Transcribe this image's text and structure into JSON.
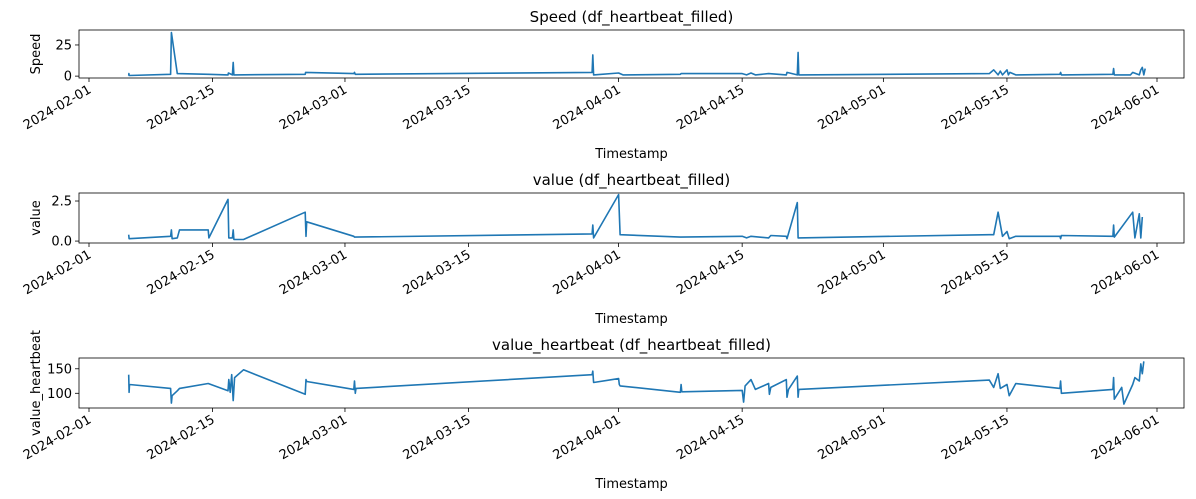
{
  "chart_data": [
    {
      "type": "line",
      "title": "Speed (df_heartbeat_filled)",
      "xlabel": "Timestamp",
      "ylabel": "Speed",
      "color": "#1f77b4",
      "x_range": [
        "2024-01-31",
        "2024-06-03"
      ],
      "ylim": [
        -1.5,
        37
      ],
      "yticks": [
        0,
        25
      ],
      "ytick_labels": [
        "0",
        "25"
      ],
      "xticks": [
        "2024-02-01",
        "2024-02-15",
        "2024-03-01",
        "2024-03-15",
        "2024-04-01",
        "2024-04-15",
        "2024-05-01",
        "2024-05-15",
        "2024-06-01"
      ],
      "xtick_labels": [
        "2024-02-01",
        "2024-02-15",
        "2024-03-01",
        "2024-03-15",
        "2024-04-01",
        "2024-04-15",
        "2024-05-01",
        "2024-05-15",
        "2024-06-01"
      ],
      "points": [
        [
          "2024-02-05T12:00",
          0.5
        ],
        [
          "2024-02-05T12:30",
          2
        ],
        [
          "2024-02-05T13:00",
          0.5
        ],
        [
          "2024-02-10T06:00",
          1.5
        ],
        [
          "2024-02-10T08:00",
          35
        ],
        [
          "2024-02-11T00:00",
          2
        ],
        [
          "2024-02-14T12:00",
          1.5
        ],
        [
          "2024-02-16T18:00",
          1
        ],
        [
          "2024-02-16T19:00",
          2.5
        ],
        [
          "2024-02-17T06:00",
          1
        ],
        [
          "2024-02-17T08:00",
          11
        ],
        [
          "2024-02-17T10:00",
          1
        ],
        [
          "2024-02-25T12:00",
          1.5
        ],
        [
          "2024-02-25T13:00",
          3
        ],
        [
          "2024-03-02T00:00",
          2
        ],
        [
          "2024-03-02T02:00",
          3
        ],
        [
          "2024-03-02T04:00",
          1.5
        ],
        [
          "2024-03-29T00:00",
          3
        ],
        [
          "2024-03-29T02:00",
          17
        ],
        [
          "2024-03-29T04:00",
          1
        ],
        [
          "2024-04-01T00:00",
          2.5
        ],
        [
          "2024-04-01T12:00",
          1
        ],
        [
          "2024-04-08T00:00",
          1.5
        ],
        [
          "2024-04-08T02:00",
          2
        ],
        [
          "2024-04-15T00:00",
          2
        ],
        [
          "2024-04-15T12:00",
          1
        ],
        [
          "2024-04-16T00:00",
          2.5
        ],
        [
          "2024-04-16T12:00",
          1
        ],
        [
          "2024-04-18T00:00",
          2
        ],
        [
          "2024-04-20T00:00",
          1
        ],
        [
          "2024-04-20T02:00",
          3
        ],
        [
          "2024-04-21T06:00",
          1
        ],
        [
          "2024-04-21T08:00",
          19
        ],
        [
          "2024-04-21T10:00",
          1
        ],
        [
          "2024-05-13T00:00",
          2
        ],
        [
          "2024-05-13T12:00",
          5
        ],
        [
          "2024-05-14T00:00",
          1
        ],
        [
          "2024-05-14T06:00",
          4
        ],
        [
          "2024-05-14T12:00",
          1
        ],
        [
          "2024-05-15T00:00",
          5
        ],
        [
          "2024-05-15T04:00",
          1
        ],
        [
          "2024-05-15T08:00",
          3
        ],
        [
          "2024-05-16T00:00",
          1
        ],
        [
          "2024-05-21T00:00",
          1.5
        ],
        [
          "2024-05-21T02:00",
          3
        ],
        [
          "2024-05-21T04:00",
          1
        ],
        [
          "2024-05-27T00:00",
          1.5
        ],
        [
          "2024-05-27T02:00",
          6
        ],
        [
          "2024-05-27T04:00",
          1
        ],
        [
          "2024-05-29T00:00",
          1
        ],
        [
          "2024-05-29T06:00",
          3
        ],
        [
          "2024-05-30T00:00",
          1
        ],
        [
          "2024-05-30T04:00",
          5
        ],
        [
          "2024-05-30T08:00",
          7
        ],
        [
          "2024-05-30T12:00",
          1
        ],
        [
          "2024-05-30T16:00",
          6
        ]
      ]
    },
    {
      "type": "line",
      "title": "value (df_heartbeat_filled)",
      "xlabel": "Timestamp",
      "ylabel": "value",
      "color": "#1f77b4",
      "x_range": [
        "2024-01-31",
        "2024-06-03"
      ],
      "ylim": [
        -0.12,
        3.0
      ],
      "yticks": [
        0.0,
        2.5
      ],
      "ytick_labels": [
        "0.0",
        "2.5"
      ],
      "xticks": [
        "2024-02-01",
        "2024-02-15",
        "2024-03-01",
        "2024-03-15",
        "2024-04-01",
        "2024-04-15",
        "2024-05-01",
        "2024-05-15",
        "2024-06-01"
      ],
      "xtick_labels": [
        "2024-02-01",
        "2024-02-15",
        "2024-03-01",
        "2024-03-15",
        "2024-04-01",
        "2024-04-15",
        "2024-05-01",
        "2024-05-15",
        "2024-06-01"
      ],
      "points": [
        [
          "2024-02-05T12:00",
          0.4
        ],
        [
          "2024-02-05T13:00",
          0.15
        ],
        [
          "2024-02-10T06:00",
          0.3
        ],
        [
          "2024-02-10T08:00",
          0.7
        ],
        [
          "2024-02-10T10:00",
          0.15
        ],
        [
          "2024-02-11T00:00",
          0.2
        ],
        [
          "2024-02-11T06:00",
          0.7
        ],
        [
          "2024-02-14T12:00",
          0.7
        ],
        [
          "2024-02-14T14:00",
          0.2
        ],
        [
          "2024-02-16T18:00",
          2.6
        ],
        [
          "2024-02-16T20:00",
          0.2
        ],
        [
          "2024-02-17T06:00",
          0.2
        ],
        [
          "2024-02-17T08:00",
          0.7
        ],
        [
          "2024-02-17T10:00",
          0.1
        ],
        [
          "2024-02-18T12:00",
          0.1
        ],
        [
          "2024-02-25T12:00",
          1.8
        ],
        [
          "2024-02-25T14:00",
          0.3
        ],
        [
          "2024-02-25T16:00",
          1.2
        ],
        [
          "2024-03-02T00:00",
          0.3
        ],
        [
          "2024-03-02T02:00",
          0.25
        ],
        [
          "2024-03-29T00:00",
          0.45
        ],
        [
          "2024-03-29T02:00",
          1.0
        ],
        [
          "2024-03-29T04:00",
          0.2
        ],
        [
          "2024-04-01T00:00",
          2.9
        ],
        [
          "2024-04-01T04:00",
          0.4
        ],
        [
          "2024-04-08T00:00",
          0.25
        ],
        [
          "2024-04-15T00:00",
          0.3
        ],
        [
          "2024-04-15T12:00",
          0.2
        ],
        [
          "2024-04-16T00:00",
          0.3
        ],
        [
          "2024-04-18T00:00",
          0.2
        ],
        [
          "2024-04-18T06:00",
          0.35
        ],
        [
          "2024-04-20T00:00",
          0.3
        ],
        [
          "2024-04-20T02:00",
          0.15
        ],
        [
          "2024-04-21T06:00",
          2.4
        ],
        [
          "2024-04-21T08:00",
          0.2
        ],
        [
          "2024-05-13T00:00",
          0.4
        ],
        [
          "2024-05-13T12:00",
          0.4
        ],
        [
          "2024-05-14T00:00",
          1.8
        ],
        [
          "2024-05-14T12:00",
          0.3
        ],
        [
          "2024-05-15T00:00",
          0.6
        ],
        [
          "2024-05-15T06:00",
          0.15
        ],
        [
          "2024-05-16T00:00",
          0.3
        ],
        [
          "2024-05-21T00:00",
          0.3
        ],
        [
          "2024-05-21T02:00",
          0.15
        ],
        [
          "2024-05-21T04:00",
          0.35
        ],
        [
          "2024-05-27T00:00",
          0.3
        ],
        [
          "2024-05-27T02:00",
          1.0
        ],
        [
          "2024-05-27T04:00",
          0.25
        ],
        [
          "2024-05-29T06:00",
          1.8
        ],
        [
          "2024-05-29T12:00",
          0.2
        ],
        [
          "2024-05-30T00:00",
          1.7
        ],
        [
          "2024-05-30T04:00",
          0.2
        ],
        [
          "2024-05-30T08:00",
          1.5
        ]
      ]
    },
    {
      "type": "line",
      "title": "value_heartbeat (df_heartbeat_filled)",
      "xlabel": "Timestamp",
      "ylabel": "value_heartbeat",
      "color": "#1f77b4",
      "x_range": [
        "2024-01-31",
        "2024-06-03"
      ],
      "ylim": [
        70,
        172
      ],
      "yticks": [
        100,
        150
      ],
      "ytick_labels": [
        "100",
        "150"
      ],
      "xticks": [
        "2024-02-01",
        "2024-02-15",
        "2024-03-01",
        "2024-03-15",
        "2024-04-01",
        "2024-04-15",
        "2024-05-01",
        "2024-05-15",
        "2024-06-01"
      ],
      "xtick_labels": [
        "2024-02-01",
        "2024-02-15",
        "2024-03-01",
        "2024-03-15",
        "2024-04-01",
        "2024-04-15",
        "2024-05-01",
        "2024-05-15",
        "2024-06-01"
      ],
      "points": [
        [
          "2024-02-05T12:00",
          138
        ],
        [
          "2024-02-05T13:00",
          102
        ],
        [
          "2024-02-05T14:00",
          118
        ],
        [
          "2024-02-10T06:00",
          110
        ],
        [
          "2024-02-10T08:00",
          80
        ],
        [
          "2024-02-10T10:00",
          95
        ],
        [
          "2024-02-11T00:00",
          105
        ],
        [
          "2024-02-11T06:00",
          110
        ],
        [
          "2024-02-14T12:00",
          120
        ],
        [
          "2024-02-16T18:00",
          105
        ],
        [
          "2024-02-16T20:00",
          128
        ],
        [
          "2024-02-17T00:00",
          102
        ],
        [
          "2024-02-17T04:00",
          138
        ],
        [
          "2024-02-17T08:00",
          85
        ],
        [
          "2024-02-17T12:00",
          132
        ],
        [
          "2024-02-18T12:00",
          148
        ],
        [
          "2024-02-25T12:00",
          98
        ],
        [
          "2024-02-25T14:00",
          128
        ],
        [
          "2024-02-25T16:00",
          124
        ],
        [
          "2024-03-02T00:00",
          108
        ],
        [
          "2024-03-02T02:00",
          125
        ],
        [
          "2024-03-02T04:00",
          100
        ],
        [
          "2024-03-02T06:00",
          110
        ],
        [
          "2024-03-29T00:00",
          138
        ],
        [
          "2024-03-29T02:00",
          145
        ],
        [
          "2024-03-29T04:00",
          122
        ],
        [
          "2024-04-01T00:00",
          130
        ],
        [
          "2024-04-01T02:00",
          118
        ],
        [
          "2024-04-01T04:00",
          115
        ],
        [
          "2024-04-08T00:00",
          102
        ],
        [
          "2024-04-08T02:00",
          118
        ],
        [
          "2024-04-08T04:00",
          103
        ],
        [
          "2024-04-15T00:00",
          106
        ],
        [
          "2024-04-15T04:00",
          82
        ],
        [
          "2024-04-15T08:00",
          115
        ],
        [
          "2024-04-16T00:00",
          128
        ],
        [
          "2024-04-16T12:00",
          108
        ],
        [
          "2024-04-18T00:00",
          120
        ],
        [
          "2024-04-18T02:00",
          98
        ],
        [
          "2024-04-18T06:00",
          112
        ],
        [
          "2024-04-20T00:00",
          128
        ],
        [
          "2024-04-20T02:00",
          92
        ],
        [
          "2024-04-20T06:00",
          108
        ],
        [
          "2024-04-21T06:00",
          135
        ],
        [
          "2024-04-21T08:00",
          92
        ],
        [
          "2024-04-21T10:00",
          108
        ],
        [
          "2024-05-13T00:00",
          127
        ],
        [
          "2024-05-13T12:00",
          112
        ],
        [
          "2024-05-14T00:00",
          140
        ],
        [
          "2024-05-14T06:00",
          110
        ],
        [
          "2024-05-15T00:00",
          118
        ],
        [
          "2024-05-15T06:00",
          95
        ],
        [
          "2024-05-16T00:00",
          120
        ],
        [
          "2024-05-21T00:00",
          110
        ],
        [
          "2024-05-21T02:00",
          125
        ],
        [
          "2024-05-21T04:00",
          100
        ],
        [
          "2024-05-27T00:00",
          108
        ],
        [
          "2024-05-27T02:00",
          132
        ],
        [
          "2024-05-27T04:00",
          88
        ],
        [
          "2024-05-28T00:00",
          112
        ],
        [
          "2024-05-28T06:00",
          78
        ],
        [
          "2024-05-29T06:00",
          118
        ],
        [
          "2024-05-29T12:00",
          132
        ],
        [
          "2024-05-30T00:00",
          125
        ],
        [
          "2024-05-30T04:00",
          160
        ],
        [
          "2024-05-30T08:00",
          140
        ],
        [
          "2024-05-30T12:00",
          165
        ]
      ]
    }
  ]
}
